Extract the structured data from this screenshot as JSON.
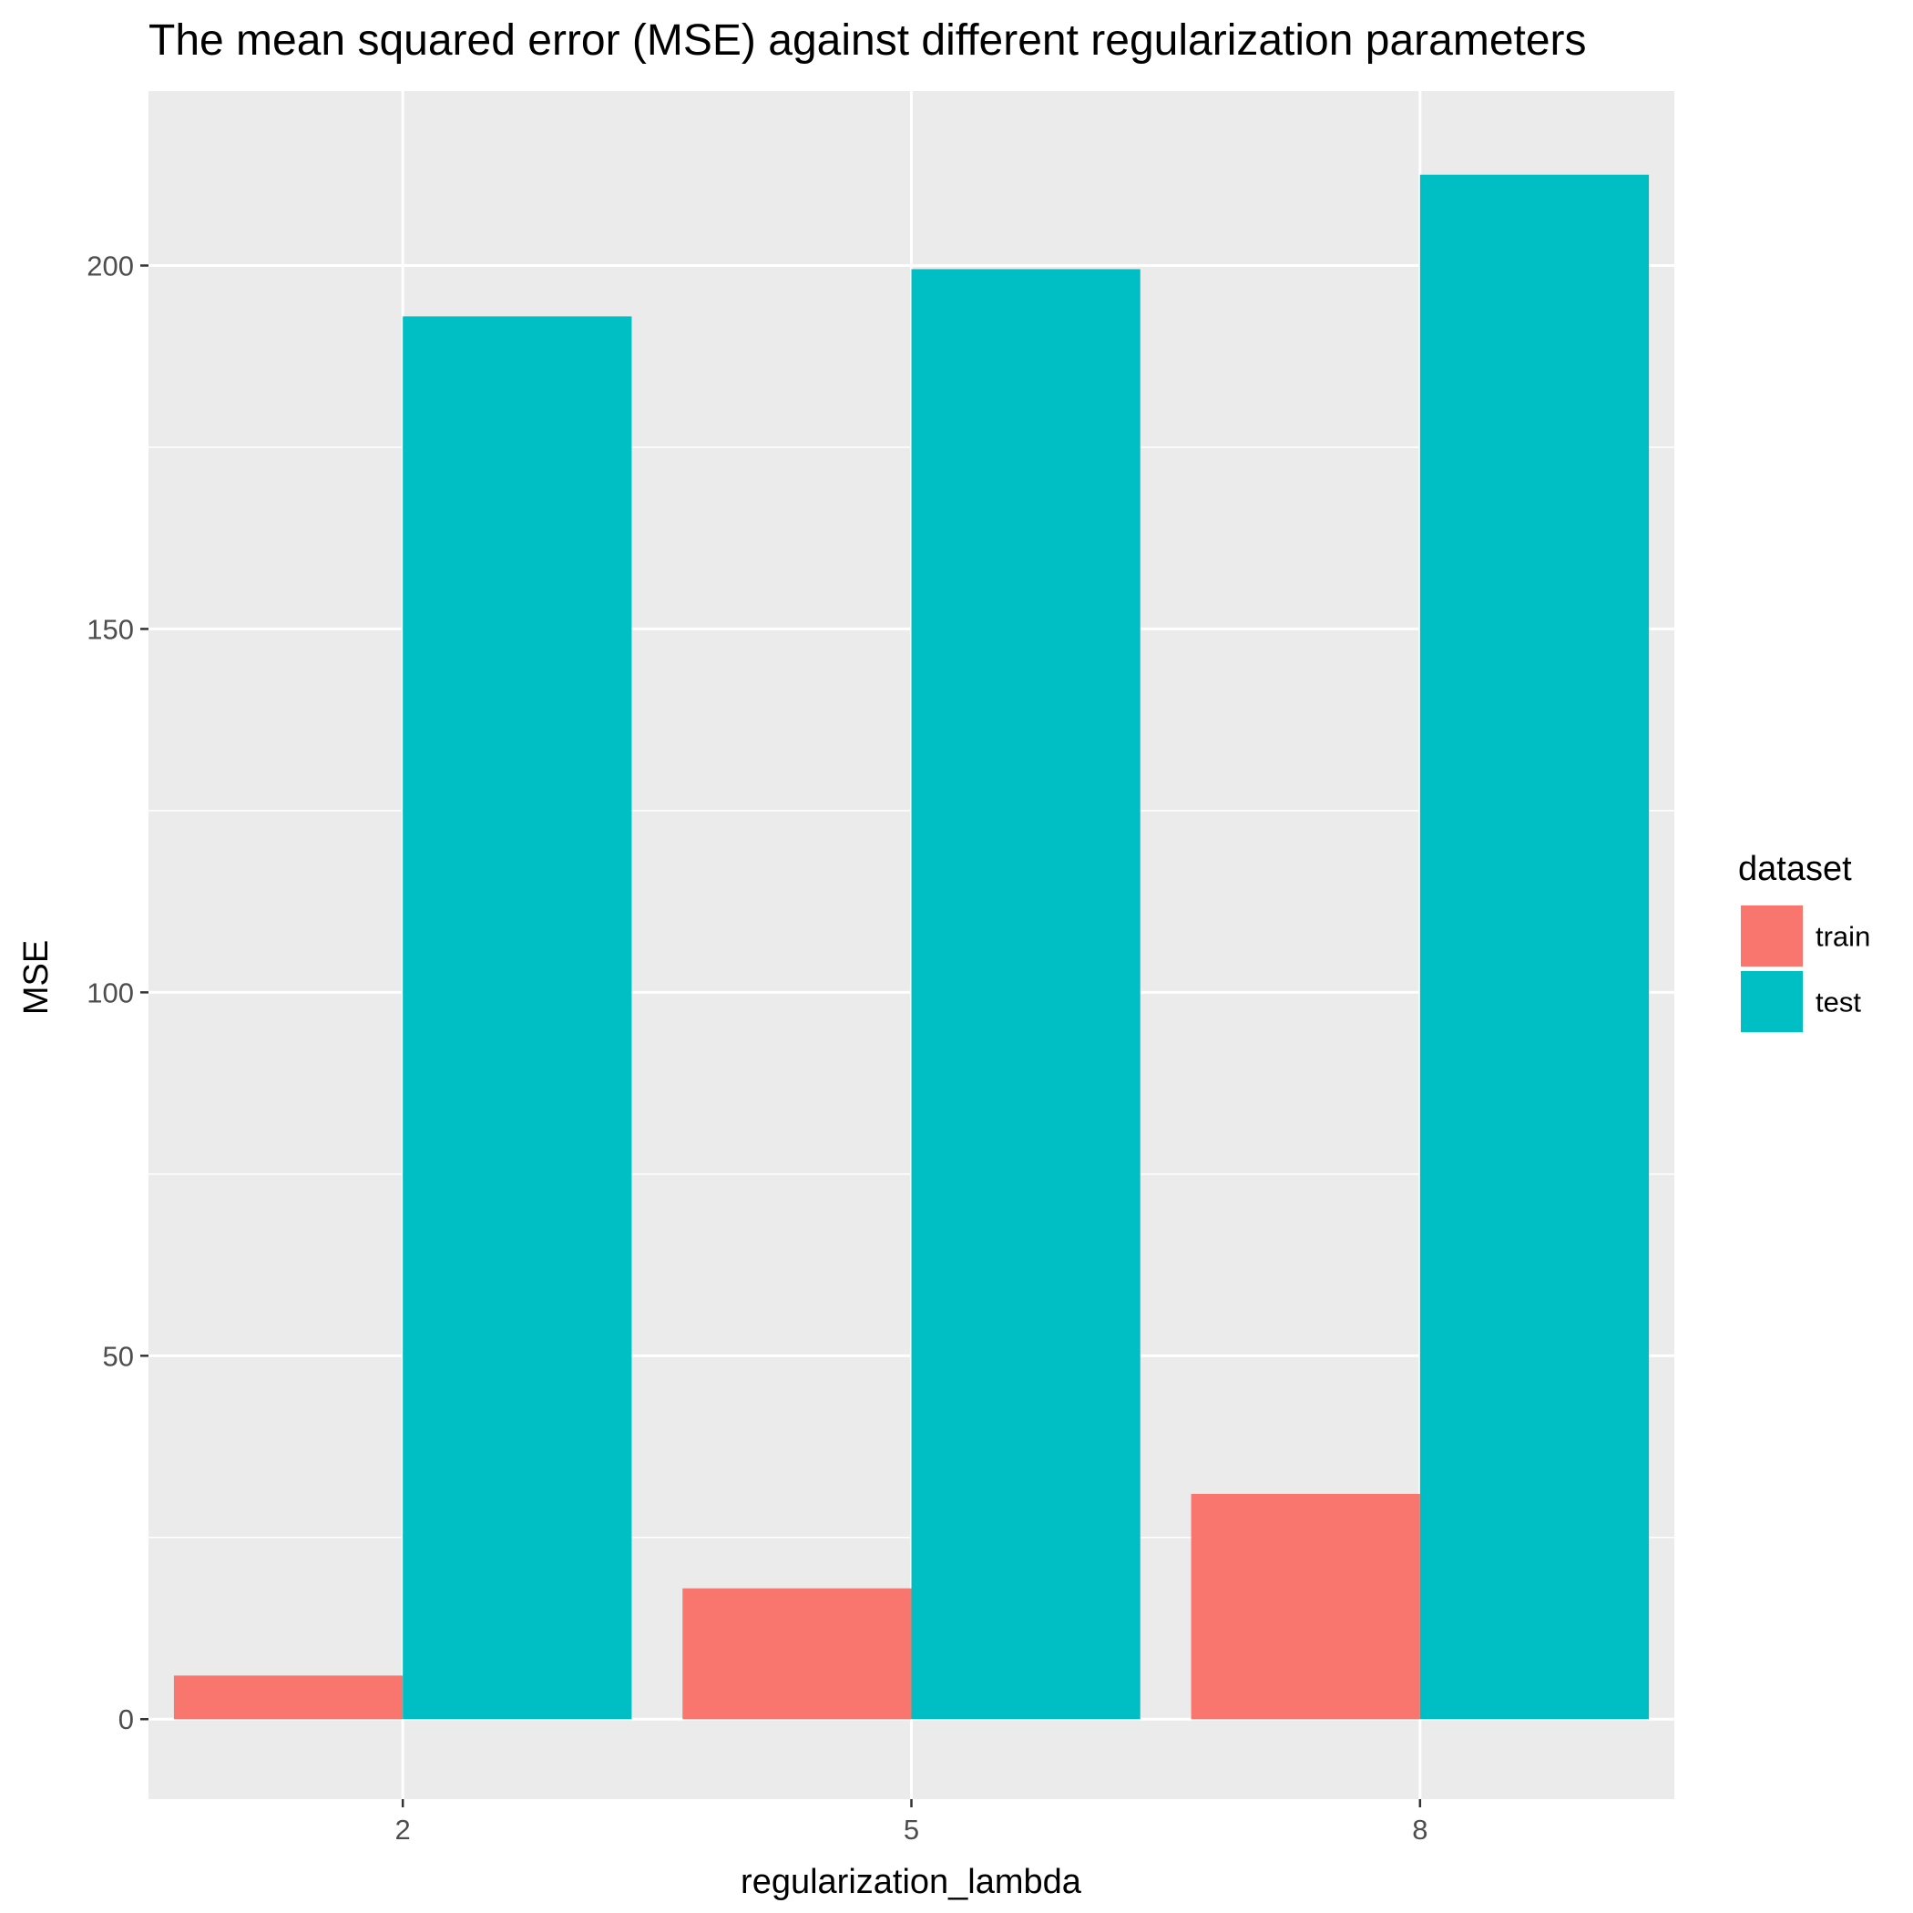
{
  "chart_data": {
    "type": "bar",
    "title": "The mean squared error (MSE) against different regularization parameters",
    "xlabel": "regularization_lambda",
    "ylabel": "MSE",
    "categories": [
      "2",
      "5",
      "8"
    ],
    "series": [
      {
        "name": "train",
        "color": "#F8766D",
        "values": [
          6,
          18,
          31
        ]
      },
      {
        "name": "test",
        "color": "#00BFC4",
        "values": [
          193,
          199.5,
          212.5
        ]
      }
    ],
    "yticks": [
      0,
      50,
      100,
      150,
      200
    ],
    "ylim": [
      -11,
      224
    ],
    "grid": true,
    "legend": {
      "title": "dataset",
      "placement": "right"
    },
    "panel_background": "#EBEBEB"
  }
}
